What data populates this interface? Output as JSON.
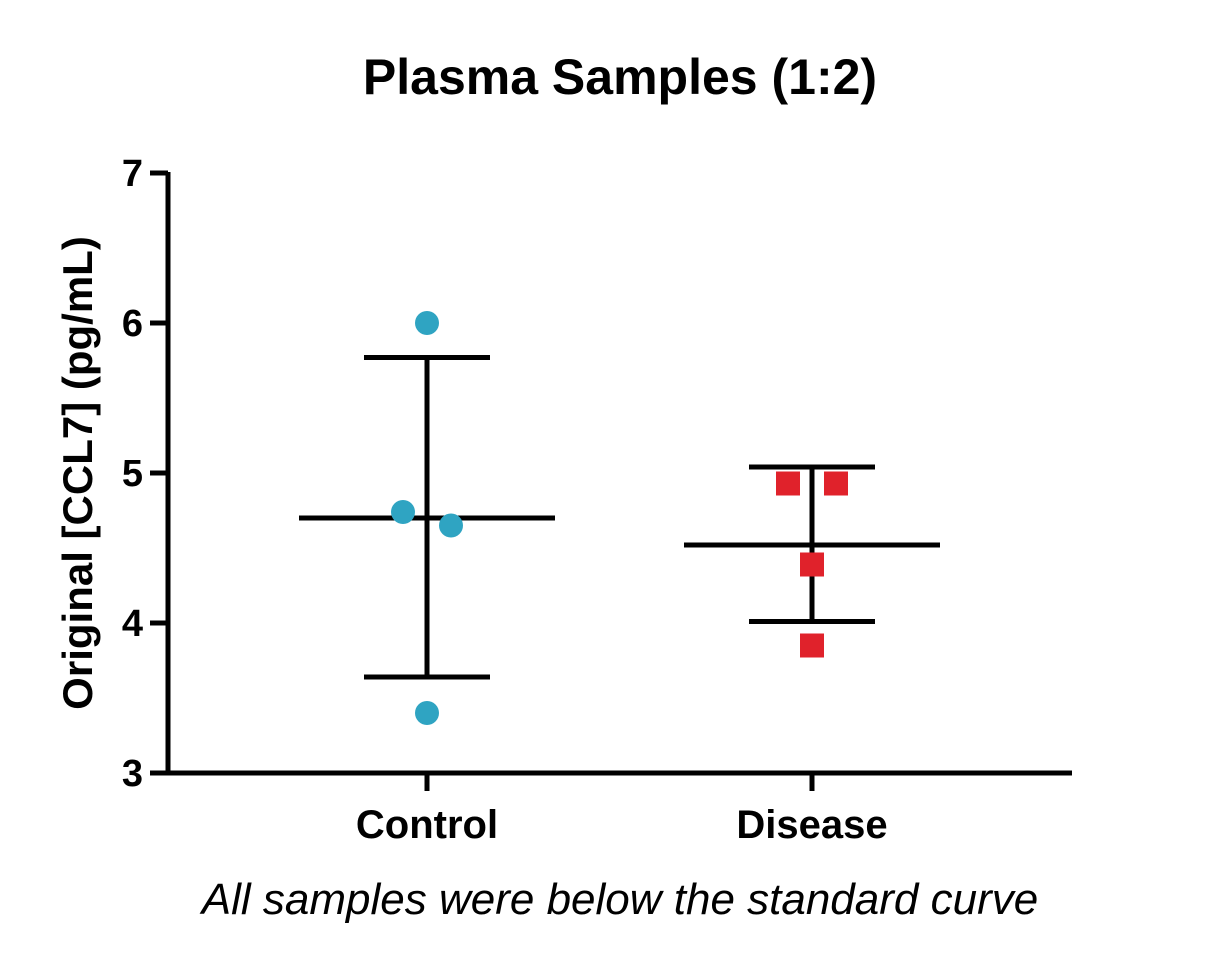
{
  "chart_data": {
    "type": "scatter",
    "title": "Plasma Samples (1:2)",
    "ylabel": "Original [CCL7] (pg/mL)",
    "xlabel": "",
    "note": "All samples were below the standard curve",
    "ylim": [
      3,
      7
    ],
    "yticks": [
      3,
      4,
      5,
      6,
      7
    ],
    "categories": [
      "Control",
      "Disease"
    ],
    "series": [
      {
        "category": "Control",
        "marker": "circle",
        "color": "#2fa4c2",
        "values": [
          6.0,
          4.74,
          4.65,
          3.4
        ],
        "mean": 4.7,
        "error_upper": 5.77,
        "error_lower": 3.64
      },
      {
        "category": "Disease",
        "marker": "square",
        "color": "#e0222b",
        "values": [
          4.93,
          4.93,
          4.39,
          3.85
        ],
        "mean": 4.52,
        "error_upper": 5.04,
        "error_lower": 4.01
      }
    ]
  }
}
